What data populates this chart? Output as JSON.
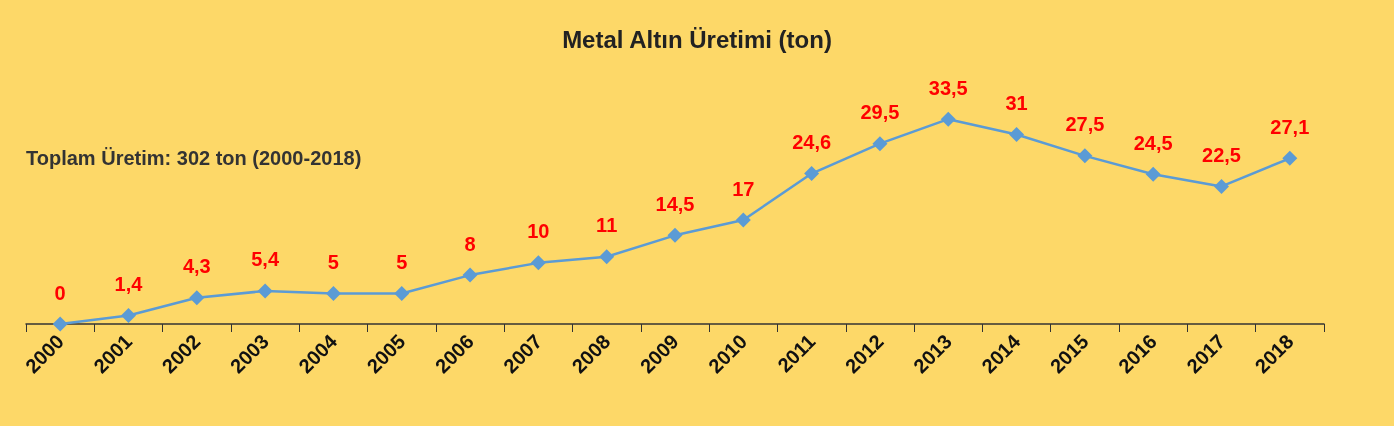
{
  "chart_data": {
    "type": "line",
    "title": "Metal Altın Üretimi (ton)",
    "categories": [
      "2000",
      "2001",
      "2002",
      "2003",
      "2004",
      "2005",
      "2006",
      "2007",
      "2008",
      "2009",
      "2010",
      "2011",
      "2012",
      "2013",
      "2014",
      "2015",
      "2016",
      "2017",
      "2018"
    ],
    "series": [
      {
        "color": "#5b9bd5",
        "values": [
          0,
          1.4,
          4.3,
          5.4,
          5,
          5,
          8,
          10,
          11,
          14.5,
          17,
          24.6,
          29.5,
          33.5,
          31,
          27.5,
          24.5,
          22.5,
          27.1
        ],
        "value_labels": [
          "0",
          "1,4",
          "4,3",
          "5,4",
          "5",
          "5",
          "8",
          "10",
          "11",
          "14,5",
          "17",
          "24,6",
          "29,5",
          "33,5",
          "31",
          "27,5",
          "24,5",
          "22,5",
          "27,1"
        ]
      }
    ],
    "annotations": [
      "Toplam Üretim: 302 ton (2000-2018)"
    ],
    "marker": "diamond",
    "line_style": "solid"
  }
}
